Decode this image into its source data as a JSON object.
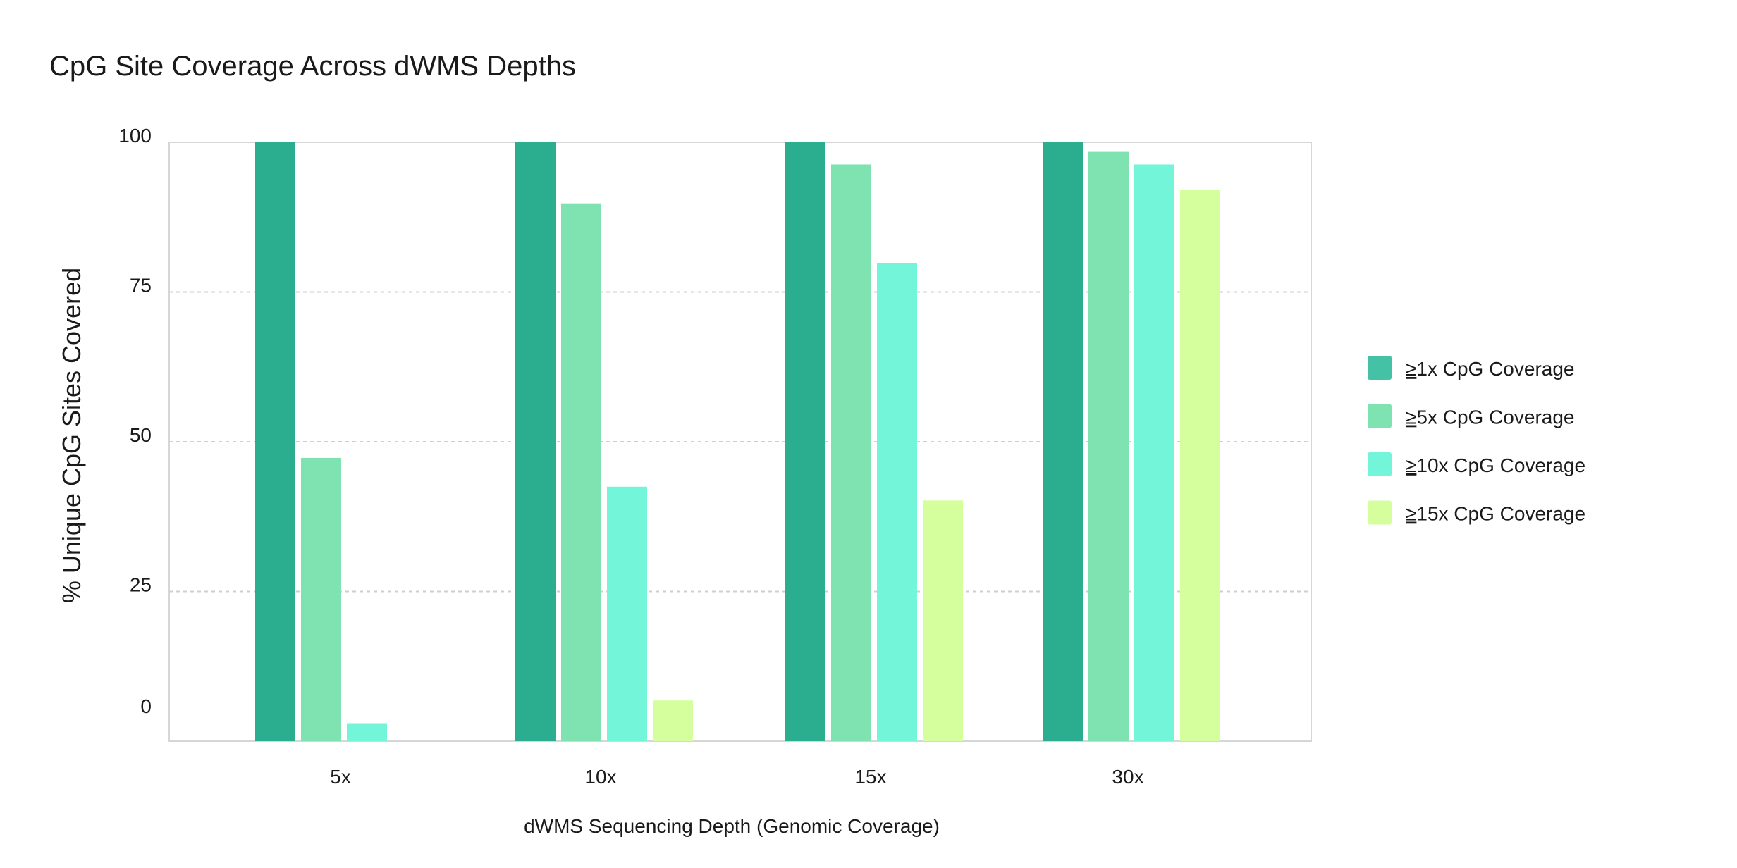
{
  "chart_data": {
    "type": "bar",
    "title": "CpG Site Coverage Across dWMS Depths",
    "xlabel": "dWMS Sequencing Depth (Genomic Coverage)",
    "ylabel": "% Unique CpG Sites Covered",
    "ylim": [
      0,
      100
    ],
    "yticks": [
      "0",
      "25",
      "50",
      "75",
      "100"
    ],
    "grid": "horizontal dashed",
    "legend_position": "right",
    "categories": [
      "5x",
      "10x",
      "15x",
      "30x"
    ],
    "series": [
      {
        "name": "≥1x CpG Coverage",
        "legend_prefix": "≥",
        "legend_rest": "1x CpG Coverage",
        "color": "#2bae90",
        "legend_color": "#45c2a6",
        "values": [
          100,
          100,
          100,
          100
        ]
      },
      {
        "name": "≥5x CpG Coverage",
        "legend_prefix": "≥",
        "legend_rest": "5x CpG Coverage",
        "color": "#7fe3b1",
        "legend_color": "#7fe3b1",
        "values": [
          47.3,
          89.8,
          96.3,
          98.4
        ]
      },
      {
        "name": "≥10x CpG Coverage",
        "legend_prefix": "≥",
        "legend_rest": "10x CpG Coverage",
        "color": "#72f5d8",
        "legend_color": "#72f5d8",
        "values": [
          3.0,
          42.5,
          79.8,
          96.3
        ]
      },
      {
        "name": "≥15x CpG Coverage",
        "legend_prefix": "≥",
        "legend_rest": "15x CpG Coverage",
        "color": "#d4ff9c",
        "legend_color": "#d4ff9c",
        "values": [
          0,
          6.8,
          40.2,
          92.0
        ]
      }
    ]
  }
}
